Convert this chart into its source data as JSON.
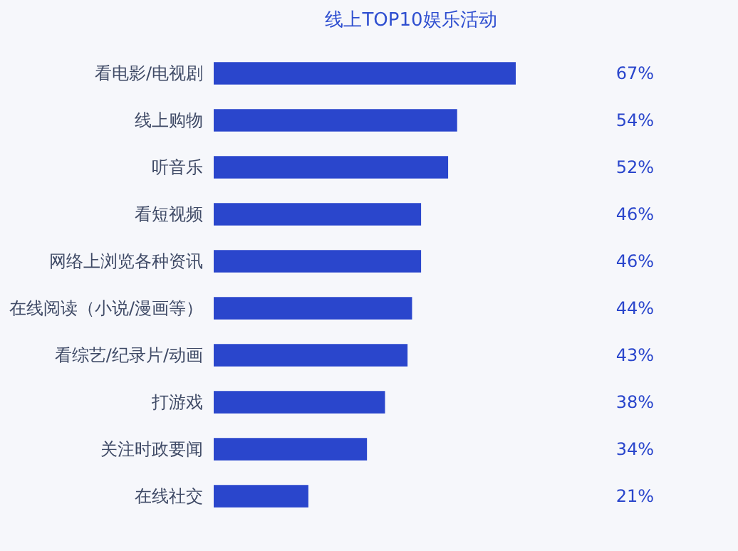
{
  "chart_data": {
    "type": "bar",
    "orientation": "horizontal",
    "title": "线上TOP10娱乐活动",
    "categories": [
      "看电影/电视剧",
      "线上购物",
      "听音乐",
      "看短视频",
      "网络上浏览各种资讯",
      "在线阅读（小说/漫画等）",
      "看综艺/纪录片/动画",
      "打游戏",
      "关注时政要闻",
      "在线社交"
    ],
    "values": [
      67,
      54,
      52,
      46,
      46,
      44,
      43,
      38,
      34,
      21
    ],
    "value_labels": [
      "67%",
      "54%",
      "52%",
      "46%",
      "46%",
      "44%",
      "43%",
      "38%",
      "34%",
      "21%"
    ],
    "color": "#2a46cc",
    "grid": false
  }
}
